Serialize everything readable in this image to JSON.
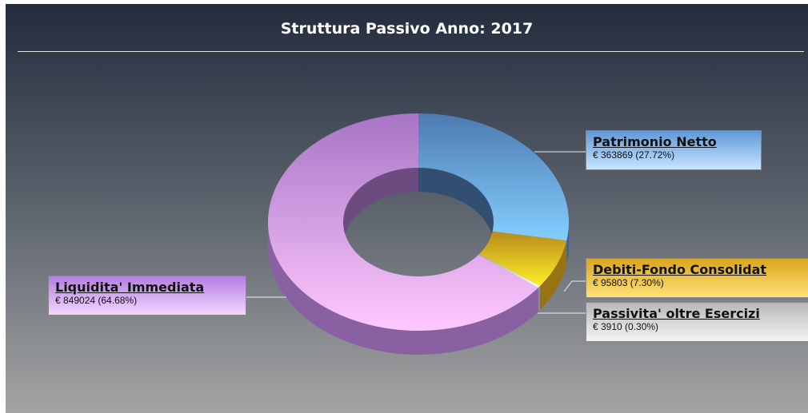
{
  "chart_data": {
    "type": "donut",
    "title": "Struttura Passivo Anno:  2017",
    "categories": [
      "Patrimonio Netto ",
      "Debiti-Fondo Consolidat",
      "Passivita' oltre Esercizi",
      "Liquidita' Immediata"
    ],
    "values": [
      363869,
      95803,
      3910,
      849024
    ],
    "value_labels": [
      "€ 363869 (27.72%)",
      "€ 95803 (7.30%)",
      "€ 3910 (0.30%)",
      "€ 849024 (64.68%)"
    ],
    "colors": [
      "#5a8fd0",
      "#d8a51e",
      "#c8c8c8",
      "#c48ae8"
    ]
  }
}
